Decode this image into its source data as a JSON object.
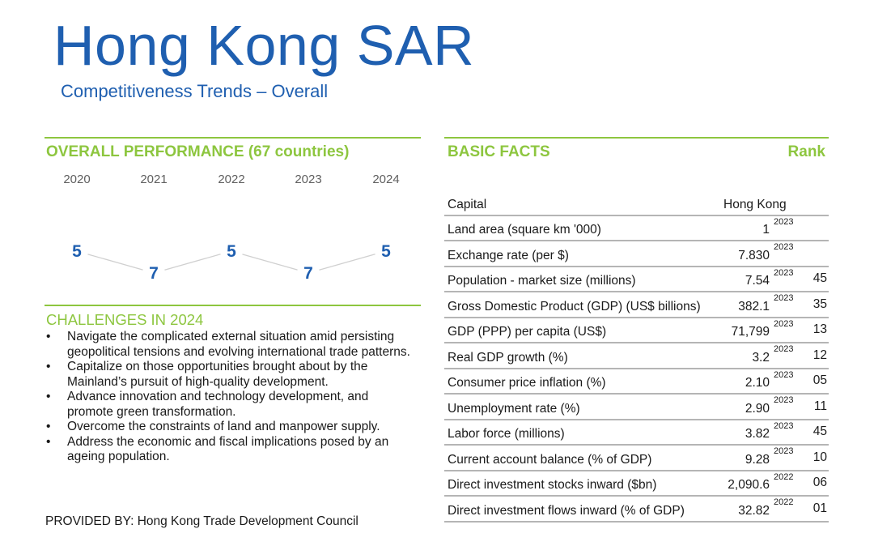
{
  "header": {
    "title": "Hong Kong SAR",
    "subtitle": "Competitiveness Trends – Overall"
  },
  "overall": {
    "heading": "OVERALL PERFORMANCE  (67 countries)",
    "chart_data": {
      "type": "line",
      "categories": [
        "2020",
        "2021",
        "2022",
        "2023",
        "2024"
      ],
      "values": [
        5,
        7,
        5,
        7,
        5
      ],
      "labels": [
        "5",
        "7",
        "5",
        "7",
        "5"
      ],
      "ylim": [
        7,
        5
      ],
      "line_color": "#d0d0d0",
      "label_color": "#1f5fb0"
    }
  },
  "challenges": {
    "heading": "CHALLENGES IN 2024",
    "bullet": "•",
    "items": [
      "Navigate the complicated external situation amid persisting geopolitical tensions and evolving international trade patterns.",
      "Capitalize on those opportunities brought about by the Mainland’s pursuit of high-quality development.",
      "Advance innovation and technology development, and promote green transformation.",
      "Overcome the constraints of land and manpower supply.",
      "Address the economic and fiscal implications posed by an ageing population."
    ]
  },
  "basic_facts": {
    "heading": "BASIC FACTS",
    "rank_heading": "Rank",
    "capital_label": "Capital",
    "capital_value": "Hong Kong",
    "rows": [
      {
        "label": "Land area (square km '000)",
        "value": "1",
        "year": "2023",
        "rank": ""
      },
      {
        "label": "Exchange rate (per $)",
        "value": "7.830",
        "year": "2023",
        "rank": ""
      },
      {
        "label": "Population - market size (millions)",
        "value": "7.54",
        "year": "2023",
        "rank": "45"
      },
      {
        "label": "Gross Domestic Product (GDP) (US$ billions)",
        "value": "382.1",
        "year": "2023",
        "rank": "35"
      },
      {
        "label": "GDP (PPP) per capita (US$)",
        "value": "71,799",
        "year": "2023",
        "rank": "13"
      },
      {
        "label": "Real GDP growth (%)",
        "value": "3.2",
        "year": "2023",
        "rank": "12"
      },
      {
        "label": "Consumer price inflation (%)",
        "value": "2.10",
        "year": "2023",
        "rank": "05"
      },
      {
        "label": "Unemployment rate (%)",
        "value": "2.90",
        "year": "2023",
        "rank": "11"
      },
      {
        "label": "Labor force (millions)",
        "value": "3.82",
        "year": "2023",
        "rank": "45"
      },
      {
        "label": "Current account balance (% of GDP)",
        "value": "9.28",
        "year": "2023",
        "rank": "10"
      },
      {
        "label": "Direct investment stocks inward ($bn)",
        "value": "2,090.6",
        "year": "2022",
        "rank": "06"
      },
      {
        "label": "Direct investment flows inward (% of GDP)",
        "value": "32.82",
        "year": "2022",
        "rank": "01"
      }
    ]
  },
  "footer": {
    "provided_by": "PROVIDED BY: Hong Kong Trade Development Council"
  },
  "colors": {
    "brand_blue": "#1f5fb0",
    "accent_green": "#8dc63f",
    "rule_grey": "#b5b5b5"
  }
}
